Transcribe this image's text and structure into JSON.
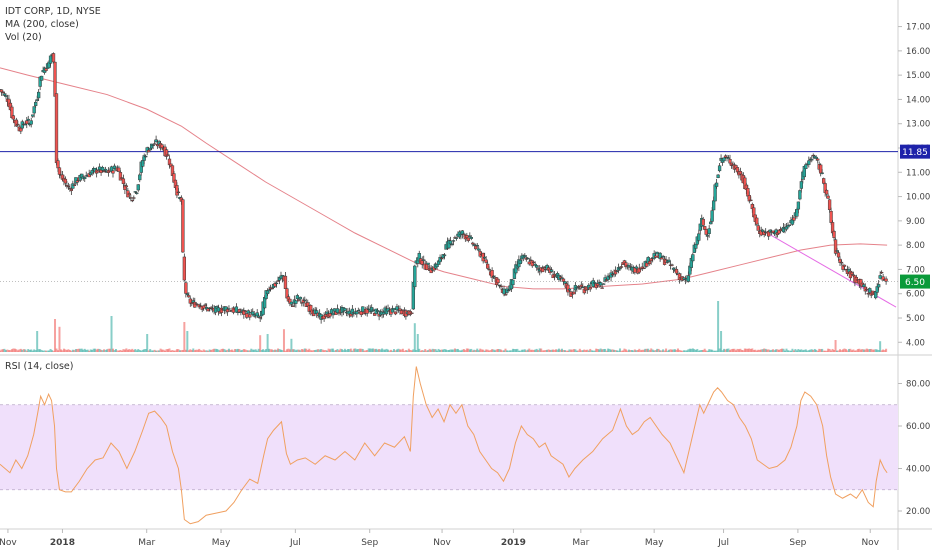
{
  "legend": {
    "symbol": "IDT CORP, 1D, NYSE",
    "ma": "MA (200, close)",
    "vol": "Vol (20)",
    "rsi": "RSI (14, close)"
  },
  "colors": {
    "up": "#26a69a",
    "down": "#ef5350",
    "candle_border": "#3a3a3a",
    "ma_line": "#e06c75",
    "resistance_line": "#1e22aa",
    "trend_line": "#e56ce5",
    "rsi_line": "#f0a060",
    "rsi_band": "#f0e0fb",
    "last_price_tag": "#0a9a3a",
    "resistance_tag": "#1e22aa"
  },
  "chart_data": [
    {
      "type": "candlestick",
      "title": "IDT CORP, 1D, NYSE",
      "x_axis": {
        "ticks": [
          "Nov",
          "2018",
          "Mar",
          "May",
          "Jul",
          "Sep",
          "Nov",
          "2019",
          "Mar",
          "May",
          "Jul",
          "Sep",
          "Nov"
        ],
        "tick_days": [
          0,
          55,
          140,
          215,
          290,
          365,
          438,
          510,
          578,
          652,
          722,
          797,
          870
        ],
        "range_days": [
          -8,
          898
        ]
      },
      "y_axis": {
        "ticks": [
          "17.00",
          "16.00",
          "15.00",
          "14.00",
          "13.00",
          "12.00",
          "11.00",
          "10.00",
          "9.00",
          "8.00",
          "7.00",
          "6.00",
          "5.00",
          "4.00"
        ],
        "range": [
          3.6,
          17.6
        ]
      },
      "last_price_label": "6.50",
      "last_price": 6.5,
      "resistance_label": "11.85",
      "resistance": 11.85,
      "price_path": [
        [
          -8,
          14.4
        ],
        [
          0,
          14.0
        ],
        [
          5,
          13.2
        ],
        [
          12,
          12.8
        ],
        [
          18,
          13.1
        ],
        [
          22,
          13.0
        ],
        [
          26,
          13.6
        ],
        [
          30,
          14.2
        ],
        [
          33,
          15.0
        ],
        [
          37,
          15.3
        ],
        [
          41,
          15.4
        ],
        [
          44,
          16.0
        ],
        [
          47,
          15.2
        ],
        [
          49,
          11.5
        ],
        [
          52,
          10.9
        ],
        [
          57,
          10.6
        ],
        [
          62,
          10.3
        ],
        [
          70,
          10.7
        ],
        [
          80,
          10.9
        ],
        [
          90,
          11.1
        ],
        [
          100,
          11.0
        ],
        [
          110,
          11.2
        ],
        [
          118,
          10.4
        ],
        [
          124,
          9.9
        ],
        [
          130,
          10.3
        ],
        [
          135,
          11.4
        ],
        [
          140,
          11.9
        ],
        [
          148,
          12.2
        ],
        [
          155,
          12.1
        ],
        [
          162,
          11.6
        ],
        [
          168,
          10.6
        ],
        [
          172,
          10.0
        ],
        [
          175,
          9.8
        ],
        [
          177,
          6.8
        ],
        [
          180,
          5.9
        ],
        [
          185,
          5.6
        ],
        [
          192,
          5.6
        ],
        [
          200,
          5.4
        ],
        [
          210,
          5.3
        ],
        [
          220,
          5.4
        ],
        [
          230,
          5.3
        ],
        [
          240,
          5.2
        ],
        [
          250,
          5.1
        ],
        [
          255,
          5.0
        ],
        [
          258,
          5.6
        ],
        [
          262,
          6.2
        ],
        [
          270,
          6.4
        ],
        [
          278,
          6.8
        ],
        [
          281,
          5.9
        ],
        [
          285,
          5.5
        ],
        [
          292,
          5.8
        ],
        [
          300,
          5.6
        ],
        [
          310,
          5.2
        ],
        [
          315,
          5.0
        ],
        [
          325,
          5.2
        ],
        [
          335,
          5.3
        ],
        [
          345,
          5.2
        ],
        [
          355,
          5.3
        ],
        [
          365,
          5.3
        ],
        [
          375,
          5.2
        ],
        [
          385,
          5.3
        ],
        [
          395,
          5.3
        ],
        [
          405,
          5.2
        ],
        [
          408,
          5.4
        ],
        [
          410,
          7.2
        ],
        [
          415,
          7.5
        ],
        [
          420,
          7.2
        ],
        [
          428,
          7.0
        ],
        [
          435,
          7.3
        ],
        [
          442,
          7.9
        ],
        [
          450,
          8.3
        ],
        [
          458,
          8.5
        ],
        [
          465,
          8.3
        ],
        [
          472,
          7.9
        ],
        [
          478,
          7.6
        ],
        [
          485,
          7.0
        ],
        [
          492,
          6.6
        ],
        [
          500,
          6.0
        ],
        [
          507,
          6.3
        ],
        [
          512,
          7.0
        ],
        [
          518,
          7.5
        ],
        [
          528,
          7.3
        ],
        [
          535,
          7.0
        ],
        [
          542,
          7.1
        ],
        [
          550,
          6.8
        ],
        [
          560,
          6.5
        ],
        [
          568,
          6.0
        ],
        [
          575,
          6.3
        ],
        [
          582,
          6.2
        ],
        [
          590,
          6.4
        ],
        [
          598,
          6.3
        ],
        [
          605,
          6.7
        ],
        [
          612,
          6.9
        ],
        [
          620,
          7.3
        ],
        [
          628,
          7.0
        ],
        [
          635,
          7.0
        ],
        [
          645,
          7.3
        ],
        [
          652,
          7.6
        ],
        [
          658,
          7.5
        ],
        [
          665,
          7.3
        ],
        [
          672,
          7.0
        ],
        [
          680,
          6.6
        ],
        [
          685,
          6.5
        ],
        [
          690,
          7.5
        ],
        [
          695,
          8.2
        ],
        [
          700,
          9.0
        ],
        [
          705,
          8.4
        ],
        [
          710,
          9.2
        ],
        [
          714,
          10.5
        ],
        [
          718,
          11.4
        ],
        [
          722,
          11.6
        ],
        [
          728,
          11.5
        ],
        [
          735,
          11.1
        ],
        [
          742,
          10.7
        ],
        [
          750,
          9.6
        ],
        [
          757,
          8.6
        ],
        [
          765,
          8.5
        ],
        [
          772,
          8.5
        ],
        [
          780,
          8.6
        ],
        [
          788,
          8.8
        ],
        [
          795,
          9.3
        ],
        [
          800,
          10.6
        ],
        [
          805,
          11.3
        ],
        [
          812,
          11.7
        ],
        [
          818,
          11.3
        ],
        [
          823,
          10.6
        ],
        [
          828,
          9.7
        ],
        [
          832,
          8.5
        ],
        [
          835,
          7.8
        ],
        [
          840,
          7.3
        ],
        [
          845,
          7.0
        ],
        [
          850,
          6.8
        ],
        [
          855,
          6.6
        ],
        [
          860,
          6.5
        ],
        [
          865,
          6.1
        ],
        [
          870,
          6.1
        ],
        [
          874,
          5.9
        ],
        [
          877,
          6.3
        ],
        [
          880,
          6.8
        ],
        [
          884,
          6.6
        ],
        [
          887,
          6.5
        ]
      ],
      "series": [
        {
          "name": "MA (200, close)",
          "points": [
            [
              -8,
              15.3
            ],
            [
              20,
              15.0
            ],
            [
              60,
              14.6
            ],
            [
              100,
              14.2
            ],
            [
              140,
              13.6
            ],
            [
              175,
              12.9
            ],
            [
              200,
              12.2
            ],
            [
              230,
              11.4
            ],
            [
              260,
              10.6
            ],
            [
              290,
              9.9
            ],
            [
              320,
              9.2
            ],
            [
              350,
              8.5
            ],
            [
              380,
              7.9
            ],
            [
              410,
              7.3
            ],
            [
              440,
              6.9
            ],
            [
              470,
              6.6
            ],
            [
              500,
              6.3
            ],
            [
              530,
              6.2
            ],
            [
              560,
              6.2
            ],
            [
              600,
              6.3
            ],
            [
              640,
              6.4
            ],
            [
              680,
              6.6
            ],
            [
              710,
              6.9
            ],
            [
              740,
              7.2
            ],
            [
              770,
              7.5
            ],
            [
              800,
              7.8
            ],
            [
              830,
              8.0
            ],
            [
              860,
              8.05
            ],
            [
              887,
              8.0
            ]
          ]
        },
        {
          "name": "Trend line",
          "points": [
            [
              768,
              8.45
            ],
            [
              896,
              5.45
            ]
          ]
        }
      ]
    },
    {
      "type": "bar",
      "title": "Vol (20)",
      "spikes": [
        [
          30,
          0.35
        ],
        [
          48,
          0.55
        ],
        [
          52,
          0.42
        ],
        [
          104,
          0.6
        ],
        [
          140,
          0.3
        ],
        [
          178,
          0.5
        ],
        [
          181,
          0.35
        ],
        [
          255,
          0.28
        ],
        [
          262,
          0.3
        ],
        [
          279,
          0.38
        ],
        [
          286,
          0.22
        ],
        [
          410,
          0.48
        ],
        [
          414,
          0.3
        ],
        [
          716,
          0.85
        ],
        [
          719,
          0.35
        ],
        [
          835,
          0.2
        ],
        [
          880,
          0.18
        ]
      ]
    },
    {
      "type": "line",
      "title": "RSI (14, close)",
      "y_axis": {
        "ticks": [
          "80.00",
          "60.00",
          "40.00",
          "20.00"
        ],
        "range": [
          12,
          92
        ]
      },
      "band": [
        30,
        70
      ],
      "points": [
        [
          -8,
          42
        ],
        [
          2,
          38
        ],
        [
          8,
          44
        ],
        [
          14,
          40
        ],
        [
          20,
          46
        ],
        [
          26,
          56
        ],
        [
          30,
          66
        ],
        [
          33,
          74
        ],
        [
          37,
          70
        ],
        [
          41,
          75
        ],
        [
          44,
          72
        ],
        [
          47,
          60
        ],
        [
          49,
          40
        ],
        [
          52,
          30
        ],
        [
          58,
          29
        ],
        [
          64,
          29
        ],
        [
          72,
          34
        ],
        [
          80,
          40
        ],
        [
          88,
          44
        ],
        [
          96,
          45
        ],
        [
          104,
          52
        ],
        [
          112,
          48
        ],
        [
          120,
          40
        ],
        [
          128,
          48
        ],
        [
          136,
          58
        ],
        [
          142,
          66
        ],
        [
          148,
          67
        ],
        [
          154,
          64
        ],
        [
          160,
          60
        ],
        [
          166,
          48
        ],
        [
          172,
          40
        ],
        [
          175,
          30
        ],
        [
          178,
          16
        ],
        [
          184,
          14
        ],
        [
          192,
          15
        ],
        [
          200,
          18
        ],
        [
          210,
          19
        ],
        [
          220,
          20
        ],
        [
          228,
          24
        ],
        [
          236,
          30
        ],
        [
          244,
          35
        ],
        [
          252,
          33
        ],
        [
          258,
          46
        ],
        [
          262,
          54
        ],
        [
          268,
          58
        ],
        [
          276,
          62
        ],
        [
          281,
          47
        ],
        [
          285,
          42
        ],
        [
          292,
          44
        ],
        [
          300,
          45
        ],
        [
          310,
          42
        ],
        [
          320,
          46
        ],
        [
          330,
          44
        ],
        [
          340,
          48
        ],
        [
          350,
          44
        ],
        [
          360,
          52
        ],
        [
          370,
          46
        ],
        [
          380,
          52
        ],
        [
          390,
          50
        ],
        [
          400,
          55
        ],
        [
          406,
          48
        ],
        [
          409,
          74
        ],
        [
          412,
          88
        ],
        [
          416,
          80
        ],
        [
          422,
          70
        ],
        [
          428,
          64
        ],
        [
          434,
          68
        ],
        [
          440,
          62
        ],
        [
          446,
          70
        ],
        [
          452,
          66
        ],
        [
          458,
          70
        ],
        [
          464,
          60
        ],
        [
          470,
          56
        ],
        [
          476,
          48
        ],
        [
          482,
          44
        ],
        [
          488,
          40
        ],
        [
          494,
          38
        ],
        [
          500,
          34
        ],
        [
          506,
          40
        ],
        [
          512,
          52
        ],
        [
          518,
          60
        ],
        [
          524,
          56
        ],
        [
          530,
          54
        ],
        [
          536,
          50
        ],
        [
          542,
          52
        ],
        [
          548,
          46
        ],
        [
          554,
          44
        ],
        [
          560,
          42
        ],
        [
          566,
          36
        ],
        [
          572,
          40
        ],
        [
          580,
          44
        ],
        [
          590,
          48
        ],
        [
          600,
          54
        ],
        [
          610,
          58
        ],
        [
          618,
          68
        ],
        [
          624,
          60
        ],
        [
          630,
          56
        ],
        [
          636,
          58
        ],
        [
          642,
          62
        ],
        [
          648,
          64
        ],
        [
          654,
          60
        ],
        [
          660,
          56
        ],
        [
          668,
          52
        ],
        [
          676,
          44
        ],
        [
          682,
          38
        ],
        [
          688,
          50
        ],
        [
          694,
          62
        ],
        [
          698,
          70
        ],
        [
          702,
          66
        ],
        [
          708,
          72
        ],
        [
          712,
          76
        ],
        [
          716,
          78
        ],
        [
          720,
          76
        ],
        [
          726,
          72
        ],
        [
          732,
          70
        ],
        [
          738,
          64
        ],
        [
          744,
          60
        ],
        [
          750,
          54
        ],
        [
          756,
          44
        ],
        [
          762,
          42
        ],
        [
          768,
          40
        ],
        [
          776,
          41
        ],
        [
          784,
          44
        ],
        [
          790,
          50
        ],
        [
          796,
          60
        ],
        [
          800,
          72
        ],
        [
          804,
          76
        ],
        [
          810,
          74
        ],
        [
          816,
          70
        ],
        [
          822,
          60
        ],
        [
          826,
          46
        ],
        [
          830,
          36
        ],
        [
          835,
          28
        ],
        [
          842,
          26
        ],
        [
          850,
          28
        ],
        [
          856,
          26
        ],
        [
          862,
          30
        ],
        [
          868,
          24
        ],
        [
          873,
          22
        ],
        [
          876,
          34
        ],
        [
          880,
          44
        ],
        [
          884,
          40
        ],
        [
          887,
          38
        ]
      ]
    }
  ]
}
